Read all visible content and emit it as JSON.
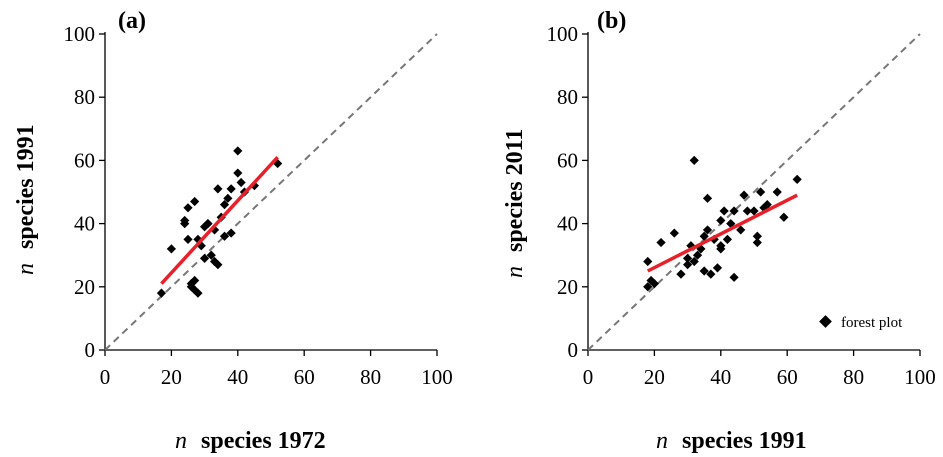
{
  "chart_data": [
    {
      "type": "scatter",
      "panel_label": "(a)",
      "xlabel_var": "n",
      "xlabel_text": "species 1972",
      "ylabel_var": "n",
      "ylabel_text": "species 1991",
      "xlim": [
        0,
        100
      ],
      "ylim": [
        0,
        100
      ],
      "x_ticks": [
        "0",
        "20",
        "40",
        "60",
        "80",
        "100"
      ],
      "y_ticks": [
        "0",
        "20",
        "40",
        "60",
        "80",
        "100"
      ],
      "grid": false,
      "marker_color": "#000000",
      "identity_line": {
        "x": [
          0,
          100
        ],
        "y": [
          0,
          100
        ],
        "style": "dashed",
        "color": "#777777"
      },
      "trend_line": {
        "x": [
          17,
          52
        ],
        "y": [
          21,
          61
        ],
        "color": "#e8202a"
      },
      "points": [
        [
          17,
          18
        ],
        [
          20,
          32
        ],
        [
          24,
          40
        ],
        [
          24,
          41
        ],
        [
          25,
          35
        ],
        [
          25,
          45
        ],
        [
          26,
          20
        ],
        [
          26,
          21
        ],
        [
          27,
          19
        ],
        [
          27,
          22
        ],
        [
          27,
          47
        ],
        [
          28,
          18
        ],
        [
          28,
          35
        ],
        [
          29,
          33
        ],
        [
          30,
          29
        ],
        [
          30,
          39
        ],
        [
          31,
          40
        ],
        [
          31,
          40
        ],
        [
          32,
          30
        ],
        [
          33,
          28
        ],
        [
          33,
          38
        ],
        [
          34,
          27
        ],
        [
          34,
          51
        ],
        [
          35,
          42
        ],
        [
          36,
          36
        ],
        [
          36,
          46
        ],
        [
          37,
          48
        ],
        [
          38,
          37
        ],
        [
          38,
          51
        ],
        [
          40,
          56
        ],
        [
          40,
          63
        ],
        [
          41,
          53
        ],
        [
          42,
          50
        ],
        [
          45,
          52
        ],
        [
          52,
          59
        ]
      ]
    },
    {
      "type": "scatter",
      "panel_label": "(b)",
      "xlabel_var": "n",
      "xlabel_text": "species 1991",
      "ylabel_var": "n",
      "ylabel_text": "species 2011",
      "xlim": [
        0,
        100
      ],
      "ylim": [
        0,
        100
      ],
      "x_ticks": [
        "0",
        "20",
        "40",
        "60",
        "80",
        "100"
      ],
      "y_ticks": [
        "0",
        "20",
        "40",
        "60",
        "80",
        "100"
      ],
      "grid": false,
      "marker_color": "#000000",
      "legend": {
        "label": "forest plot",
        "position": "bottom-right"
      },
      "identity_line": {
        "x": [
          0,
          100
        ],
        "y": [
          0,
          100
        ],
        "style": "dashed",
        "color": "#777777"
      },
      "trend_line": {
        "x": [
          18,
          63
        ],
        "y": [
          25,
          49
        ],
        "color": "#e8202a"
      },
      "points": [
        [
          18,
          20
        ],
        [
          18,
          28
        ],
        [
          19,
          22
        ],
        [
          20,
          21
        ],
        [
          22,
          34
        ],
        [
          26,
          37
        ],
        [
          28,
          24
        ],
        [
          30,
          27
        ],
        [
          30,
          29
        ],
        [
          31,
          33
        ],
        [
          32,
          28
        ],
        [
          32,
          60
        ],
        [
          33,
          30
        ],
        [
          34,
          32
        ],
        [
          35,
          36
        ],
        [
          35,
          25
        ],
        [
          36,
          38
        ],
        [
          36,
          48
        ],
        [
          37,
          24
        ],
        [
          38,
          35
        ],
        [
          39,
          26
        ],
        [
          40,
          33
        ],
        [
          40,
          32
        ],
        [
          40,
          41
        ],
        [
          41,
          44
        ],
        [
          42,
          35
        ],
        [
          43,
          40
        ],
        [
          44,
          23
        ],
        [
          44,
          44
        ],
        [
          46,
          38
        ],
        [
          47,
          49
        ],
        [
          48,
          44
        ],
        [
          50,
          44
        ],
        [
          51,
          34
        ],
        [
          51,
          36
        ],
        [
          52,
          50
        ],
        [
          53,
          45
        ],
        [
          54,
          46
        ],
        [
          57,
          50
        ],
        [
          59,
          42
        ],
        [
          63,
          54
        ]
      ]
    }
  ]
}
